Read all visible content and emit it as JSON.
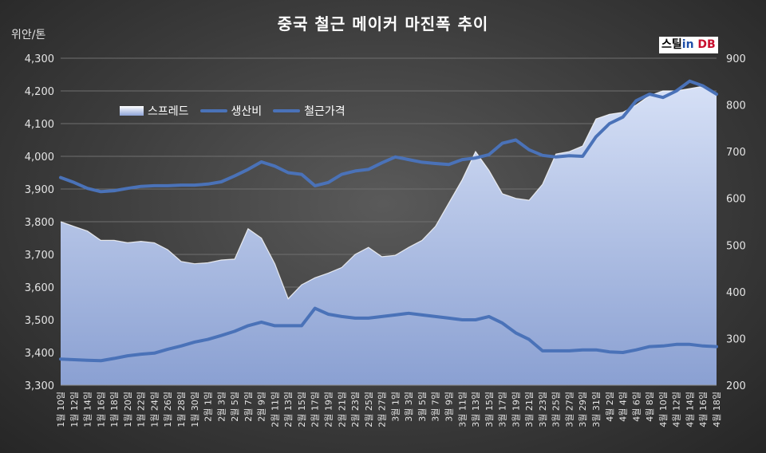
{
  "chart_data": {
    "type": "area",
    "title": "중국 철근 메이커 마진폭 추이",
    "ylabel": "위안/톤",
    "y_left": {
      "min": 3300,
      "max": 4300,
      "step": 100,
      "ticks": [
        "3,300",
        "3,400",
        "3,500",
        "3,600",
        "3,700",
        "3,800",
        "3,900",
        "4,000",
        "4,100",
        "4,200",
        "4,300"
      ]
    },
    "y_right": {
      "min": 200,
      "max": 900,
      "step": 100,
      "ticks": [
        "200",
        "300",
        "400",
        "500",
        "600",
        "700",
        "800",
        "900"
      ]
    },
    "legend": {
      "position": "top-left",
      "entries": [
        "스프레드",
        "생산비",
        "철근가격"
      ]
    },
    "grid": true,
    "categories": [
      "1월 10일",
      "1월 12일",
      "1월 14일",
      "1월 16일",
      "1월 18일",
      "1월 20일",
      "1월 22일",
      "1월 24일",
      "1월 26일",
      "1월 28일",
      "1월 30일",
      "2월 1일",
      "2월 3일",
      "2월 5일",
      "2월 7일",
      "2월 9일",
      "2월 11일",
      "2월 13일",
      "2월 15일",
      "2월 17일",
      "2월 19일",
      "2월 21일",
      "2월 23일",
      "2월 25일",
      "2월 27일",
      "3월 1일",
      "3월 3일",
      "3월 5일",
      "3월 7일",
      "3월 9일",
      "3월 11일",
      "3월 13일",
      "3월 15일",
      "3월 17일",
      "3월 19일",
      "3월 21일",
      "3월 23일",
      "3월 25일",
      "3월 27일",
      "3월 29일",
      "3월 31일",
      "4월 2일",
      "4월 4일",
      "4월 6일",
      "4월 8일",
      "4월 10일",
      "4월 12일",
      "4월 14일",
      "4월 16일",
      "4월 18일"
    ],
    "series": [
      {
        "name": "스프레드",
        "axis": "right",
        "type": "area",
        "values": [
          550,
          540,
          530,
          510,
          510,
          505,
          508,
          505,
          490,
          465,
          460,
          462,
          468,
          470,
          535,
          515,
          460,
          385,
          415,
          430,
          440,
          452,
          480,
          495,
          475,
          478,
          495,
          510,
          540,
          590,
          640,
          700,
          660,
          610,
          600,
          596,
          630,
          695,
          700,
          712,
          770,
          780,
          784,
          800,
          820,
          830,
          830,
          835,
          840,
          822
        ]
      },
      {
        "name": "생산비",
        "axis": "left",
        "type": "line",
        "values": [
          3380,
          3378,
          3376,
          3375,
          3382,
          3390,
          3395,
          3398,
          3410,
          3420,
          3432,
          3440,
          3452,
          3465,
          3482,
          3493,
          3482,
          3482,
          3482,
          3535,
          3517,
          3510,
          3505,
          3505,
          3510,
          3515,
          3520,
          3515,
          3510,
          3505,
          3500,
          3500,
          3510,
          3490,
          3460,
          3440,
          3405,
          3405,
          3405,
          3408,
          3408,
          3402,
          3400,
          3408,
          3418,
          3420,
          3425,
          3425,
          3420,
          3418
        ]
      },
      {
        "name": "철근가격",
        "axis": "left",
        "type": "line",
        "values": [
          3935,
          3920,
          3902,
          3892,
          3895,
          3902,
          3908,
          3910,
          3910,
          3912,
          3912,
          3915,
          3922,
          3940,
          3960,
          3983,
          3970,
          3950,
          3945,
          3910,
          3920,
          3945,
          3955,
          3960,
          3980,
          3998,
          3990,
          3982,
          3978,
          3975,
          3990,
          3995,
          4005,
          4040,
          4050,
          4020,
          4003,
          3998,
          4002,
          4000,
          4060,
          4100,
          4120,
          4170,
          4190,
          4180,
          4200,
          4230,
          4215,
          4190
        ]
      }
    ]
  }
}
